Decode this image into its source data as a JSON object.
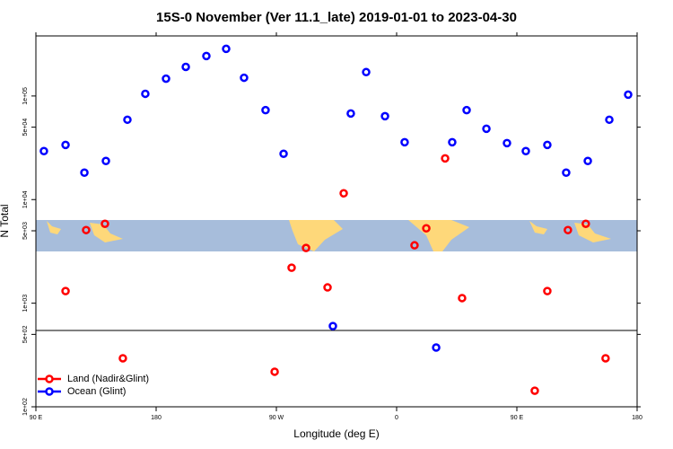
{
  "chart_data": {
    "type": "scatter",
    "title": "15S-0 November (Ver 11.1_late)   2019-01-01 to 2023-04-30",
    "x_label": "Longitude (deg E)",
    "y_label": "N Total",
    "xlim": [
      90,
      540
    ],
    "ylim": [
      100,
      380000
    ],
    "log_y": true,
    "xticks": [
      {
        "value": 90,
        "label": "90 E"
      },
      {
        "value": 180,
        "label": "180"
      },
      {
        "value": 270,
        "label": "90 W"
      },
      {
        "value": 360,
        "label": "0"
      },
      {
        "value": 450,
        "label": "90 E"
      },
      {
        "value": 540,
        "label": "180"
      }
    ],
    "yticks": [
      {
        "value": 100,
        "label": "1e+02"
      },
      {
        "value": 500,
        "label": "5e+02"
      },
      {
        "value": 1000,
        "label": "1e+03"
      },
      {
        "value": 5000,
        "label": "5e+03"
      },
      {
        "value": 10000,
        "label": "1e+04"
      },
      {
        "value": 50000,
        "label": "5e+04"
      },
      {
        "value": 100000,
        "label": "1e+05"
      }
    ],
    "legend_position": "lower left",
    "series": [
      {
        "name": "Land (Nadir&Glint)",
        "color": "#ff0000",
        "x": [
          112.2,
          127.6,
          141.7,
          155.1,
          268.7,
          281.4,
          292.2,
          308.3,
          320.4,
          373.4,
          382.2,
          396.3,
          409.0,
          463.4,
          472.8,
          488.2,
          501.6,
          516.4
        ],
        "values": [
          1310,
          5080,
          5840,
          294,
          218,
          2200,
          3410,
          1420,
          11500,
          3620,
          5280,
          25000,
          1120,
          143,
          1310,
          5080,
          5840,
          294
        ]
      },
      {
        "name": "Ocean (Glint)",
        "color": "#0000ff",
        "x": [
          96.0,
          112.2,
          126.3,
          142.4,
          158.5,
          171.9,
          187.4,
          202.2,
          217.6,
          232.4,
          245.8,
          261.9,
          275.4,
          312.3,
          325.7,
          337.2,
          351.3,
          366.0,
          389.6,
          401.6,
          412.4,
          427.2,
          442.6,
          456.7,
          472.8,
          486.9,
          503.1,
          519.2,
          533.3
        ],
        "values": [
          29400,
          33700,
          18200,
          23600,
          59000,
          105000,
          147000,
          191000,
          243000,
          285000,
          150000,
          73000,
          27700,
          601,
          67800,
          170000,
          63800,
          35800,
          373,
          35800,
          73000,
          48300,
          35100,
          29400,
          33700,
          18200,
          23600,
          59000,
          103000
        ]
      }
    ]
  }
}
